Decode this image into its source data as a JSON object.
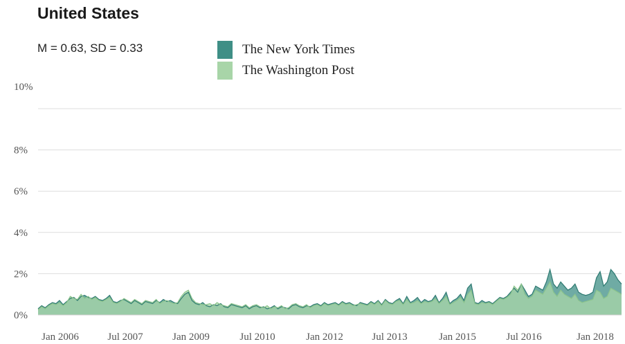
{
  "chart_data": {
    "type": "area",
    "title": "United States",
    "subtitle": "M = 0.63, SD = 0.33",
    "xlabel": "",
    "ylabel": "",
    "ylim": [
      0,
      10
    ],
    "yticks": [
      {
        "value": 0,
        "label": "0%"
      },
      {
        "value": 2,
        "label": "2%"
      },
      {
        "value": 4,
        "label": "4%"
      },
      {
        "value": 6,
        "label": "6%"
      },
      {
        "value": 8,
        "label": "8%"
      },
      {
        "value": 10,
        "label": "10%"
      }
    ],
    "xticks": [
      "Jan 2006",
      "Jul 2007",
      "Jan 2009",
      "Jul 2010",
      "Jan 2012",
      "Jul 2013",
      "Jan 2015",
      "Jul 2016",
      "Jan 2018"
    ],
    "x_start": "Oct 2005",
    "x_end": "Jun 2018",
    "grid": true,
    "legend_position": "top",
    "series": [
      {
        "name": "The New York Times",
        "color": "#3f8f86",
        "values": [
          0.3,
          0.45,
          0.35,
          0.5,
          0.6,
          0.55,
          0.7,
          0.5,
          0.65,
          0.8,
          0.85,
          0.7,
          0.9,
          0.95,
          0.85,
          0.8,
          0.9,
          0.75,
          0.7,
          0.8,
          0.95,
          0.65,
          0.6,
          0.7,
          0.75,
          0.65,
          0.55,
          0.7,
          0.6,
          0.5,
          0.65,
          0.6,
          0.55,
          0.7,
          0.6,
          0.75,
          0.65,
          0.7,
          0.6,
          0.55,
          0.8,
          1.0,
          1.1,
          0.7,
          0.55,
          0.5,
          0.6,
          0.45,
          0.4,
          0.5,
          0.45,
          0.55,
          0.4,
          0.35,
          0.5,
          0.45,
          0.4,
          0.35,
          0.45,
          0.3,
          0.4,
          0.45,
          0.35,
          0.4,
          0.3,
          0.35,
          0.45,
          0.3,
          0.4,
          0.35,
          0.3,
          0.45,
          0.5,
          0.4,
          0.35,
          0.45,
          0.4,
          0.5,
          0.55,
          0.45,
          0.6,
          0.5,
          0.55,
          0.6,
          0.5,
          0.65,
          0.55,
          0.6,
          0.5,
          0.45,
          0.6,
          0.55,
          0.5,
          0.65,
          0.55,
          0.7,
          0.5,
          0.75,
          0.6,
          0.55,
          0.7,
          0.8,
          0.55,
          0.9,
          0.6,
          0.7,
          0.85,
          0.6,
          0.75,
          0.65,
          0.7,
          0.95,
          0.6,
          0.8,
          1.1,
          0.55,
          0.7,
          0.8,
          1.0,
          0.7,
          1.3,
          1.5,
          0.6,
          0.55,
          0.7,
          0.6,
          0.65,
          0.55,
          0.7,
          0.85,
          0.8,
          0.9,
          1.1,
          1.3,
          1.1,
          1.5,
          1.2,
          0.9,
          1.0,
          1.4,
          1.3,
          1.2,
          1.6,
          2.2,
          1.5,
          1.3,
          1.6,
          1.4,
          1.2,
          1.3,
          1.5,
          1.1,
          1.0,
          0.95,
          1.0,
          1.1,
          1.8,
          2.1,
          1.4,
          1.6,
          2.2,
          2.0,
          1.7,
          1.5
        ]
      },
      {
        "name": "The Washington Post",
        "color": "#a8d5a8",
        "values": [
          0.25,
          0.4,
          0.3,
          0.45,
          0.55,
          0.5,
          0.6,
          0.45,
          0.6,
          0.9,
          0.8,
          0.75,
          1.0,
          0.8,
          0.9,
          0.75,
          0.85,
          0.7,
          0.65,
          0.75,
          0.85,
          0.6,
          0.55,
          0.65,
          0.8,
          0.7,
          0.6,
          0.75,
          0.65,
          0.55,
          0.7,
          0.65,
          0.6,
          0.75,
          0.55,
          0.65,
          0.7,
          0.6,
          0.55,
          0.6,
          0.9,
          1.1,
          1.2,
          0.8,
          0.6,
          0.55,
          0.5,
          0.5,
          0.55,
          0.45,
          0.6,
          0.5,
          0.45,
          0.4,
          0.55,
          0.5,
          0.45,
          0.4,
          0.5,
          0.35,
          0.45,
          0.5,
          0.4,
          0.35,
          0.45,
          0.3,
          0.4,
          0.35,
          0.45,
          0.3,
          0.35,
          0.5,
          0.55,
          0.45,
          0.4,
          0.5,
          0.35,
          0.45,
          0.5,
          0.4,
          0.55,
          0.45,
          0.5,
          0.55,
          0.45,
          0.6,
          0.5,
          0.55,
          0.45,
          0.5,
          0.55,
          0.5,
          0.45,
          0.6,
          0.5,
          0.65,
          0.45,
          0.7,
          0.55,
          0.5,
          0.65,
          0.7,
          0.5,
          0.75,
          0.55,
          0.6,
          0.7,
          0.55,
          0.65,
          0.6,
          0.65,
          0.8,
          0.55,
          0.7,
          0.9,
          0.5,
          0.6,
          0.7,
          0.85,
          0.6,
          1.0,
          1.2,
          0.55,
          0.5,
          0.6,
          0.55,
          0.6,
          0.5,
          0.65,
          0.8,
          0.75,
          0.85,
          1.0,
          1.4,
          1.2,
          1.5,
          1.0,
          0.8,
          0.9,
          1.2,
          1.1,
          1.0,
          1.3,
          1.6,
          1.1,
          0.9,
          1.2,
          1.0,
          0.9,
          0.8,
          1.0,
          0.7,
          0.6,
          0.65,
          0.7,
          0.75,
          1.2,
          1.1,
          0.8,
          0.9,
          1.3,
          1.2,
          1.1,
          1.0
        ]
      }
    ]
  }
}
